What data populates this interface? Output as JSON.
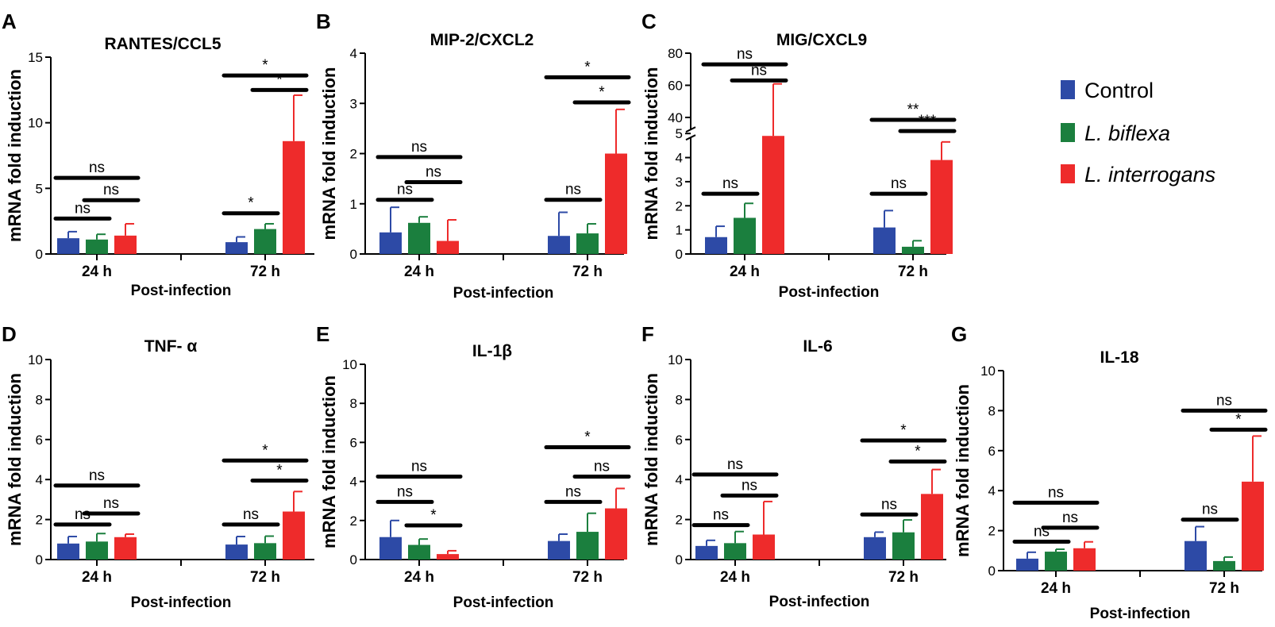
{
  "colors": {
    "control": "#2d4aa6",
    "biflexa": "#1b7f3e",
    "interrogans": "#ee2b2b",
    "axis": "#000000"
  },
  "legend": [
    {
      "label": "Control",
      "color": "#2d4aa6",
      "italic": false
    },
    {
      "label": "L. biflexa",
      "color": "#1b7f3e",
      "italic": true
    },
    {
      "label": "L. interrogans",
      "color": "#ee2b2b",
      "italic": true
    }
  ],
  "chart_data": [
    {
      "panel": "A",
      "type": "bar",
      "title": "RANTES/CCL5",
      "xlabel": "Post-infection",
      "ylabel": "mRNA fold induction",
      "categories": [
        "24 h",
        "72 h"
      ],
      "ylim": [
        0,
        15
      ],
      "yticks": [
        0,
        5,
        10,
        15
      ],
      "series": [
        {
          "name": "Control",
          "values": [
            1.2,
            0.9
          ],
          "errors": [
            0.5,
            0.4
          ]
        },
        {
          "name": "L. biflexa",
          "values": [
            1.1,
            1.9
          ],
          "errors": [
            0.4,
            0.4
          ]
        },
        {
          "name": "L. interrogans",
          "values": [
            1.4,
            8.6
          ],
          "errors": [
            0.9,
            3.5
          ]
        }
      ],
      "annotations": [
        {
          "cat": 0,
          "from": 0,
          "to": 1,
          "y": 2.7,
          "label": "ns"
        },
        {
          "cat": 0,
          "from": 1,
          "to": 2,
          "y": 4.1,
          "label": "ns"
        },
        {
          "cat": 0,
          "from": 0,
          "to": 2,
          "y": 5.8,
          "label": "ns"
        },
        {
          "cat": 1,
          "from": 0,
          "to": 1,
          "y": 3.1,
          "label": "*"
        },
        {
          "cat": 1,
          "from": 1,
          "to": 2,
          "y": 12.5,
          "label": "*"
        },
        {
          "cat": 1,
          "from": 0,
          "to": 2,
          "y": 13.6,
          "label": "*"
        }
      ]
    },
    {
      "panel": "B",
      "type": "bar",
      "title": "MIP-2/CXCL2",
      "xlabel": "Post-infection",
      "ylabel": "mRNA fold induction",
      "categories": [
        "24 h",
        "72 h"
      ],
      "ylim": [
        0,
        4
      ],
      "yticks": [
        0,
        1,
        2,
        3,
        4
      ],
      "series": [
        {
          "name": "Control",
          "values": [
            0.43,
            0.36
          ],
          "errors": [
            0.5,
            0.47
          ]
        },
        {
          "name": "L. biflexa",
          "values": [
            0.62,
            0.41
          ],
          "errors": [
            0.12,
            0.19
          ]
        },
        {
          "name": "L. interrogans",
          "values": [
            0.26,
            2.0
          ],
          "errors": [
            0.42,
            0.88
          ]
        }
      ],
      "annotations": [
        {
          "cat": 0,
          "from": 0,
          "to": 1,
          "y": 1.08,
          "label": "ns"
        },
        {
          "cat": 0,
          "from": 1,
          "to": 2,
          "y": 1.43,
          "label": "ns"
        },
        {
          "cat": 0,
          "from": 0,
          "to": 2,
          "y": 1.93,
          "label": "ns"
        },
        {
          "cat": 1,
          "from": 0,
          "to": 1,
          "y": 1.08,
          "label": "ns"
        },
        {
          "cat": 1,
          "from": 1,
          "to": 2,
          "y": 3.02,
          "label": "*"
        },
        {
          "cat": 1,
          "from": 0,
          "to": 2,
          "y": 3.52,
          "label": "*"
        }
      ]
    },
    {
      "panel": "C",
      "type": "bar",
      "title": "MIG/CXCL9",
      "xlabel": "Post-infection",
      "ylabel": "mRNA fold induction",
      "categories": [
        "24 h",
        "72 h"
      ],
      "broken_axis": {
        "lower": [
          0,
          5
        ],
        "upper": [
          30,
          80
        ],
        "lower_fraction": 0.6
      },
      "yticks": [
        0,
        1,
        2,
        3,
        4,
        5,
        40,
        60,
        80
      ],
      "series": [
        {
          "name": "Control",
          "values": [
            0.7,
            1.1
          ],
          "errors": [
            0.45,
            0.7
          ]
        },
        {
          "name": "L. biflexa",
          "values": [
            1.5,
            0.3
          ],
          "errors": [
            0.6,
            0.25
          ]
        },
        {
          "name": "L. interrogans",
          "values": [
            4.9,
            3.9
          ],
          "errors": [
            56.0,
            0.75
          ]
        }
      ],
      "annotations": [
        {
          "cat": 0,
          "from": 0,
          "to": 1,
          "y": 2.5,
          "label": "ns"
        },
        {
          "cat": 0,
          "from": 1,
          "to": 2,
          "y": 63,
          "label": "ns"
        },
        {
          "cat": 0,
          "from": 0,
          "to": 2,
          "y": 73,
          "label": "ns"
        },
        {
          "cat": 1,
          "from": 0,
          "to": 1,
          "y": 2.5,
          "label": "ns"
        },
        {
          "cat": 1,
          "from": 1,
          "to": 2,
          "y": 31.5,
          "label": "***"
        },
        {
          "cat": 1,
          "from": 0,
          "to": 2,
          "y": 38.5,
          "label": "**"
        }
      ]
    },
    {
      "panel": "D",
      "type": "bar",
      "title": "TNF- α",
      "xlabel": "Post-infection",
      "ylabel": "mRNA fold induction",
      "categories": [
        "24 h",
        "72 h"
      ],
      "ylim": [
        0,
        10
      ],
      "yticks": [
        0,
        2,
        4,
        6,
        8,
        10
      ],
      "series": [
        {
          "name": "Control",
          "values": [
            0.8,
            0.75
          ],
          "errors": [
            0.35,
            0.4
          ]
        },
        {
          "name": "L. biflexa",
          "values": [
            0.9,
            0.82
          ],
          "errors": [
            0.4,
            0.35
          ]
        },
        {
          "name": "L. interrogans",
          "values": [
            1.12,
            2.4
          ],
          "errors": [
            0.15,
            1.0
          ]
        }
      ],
      "annotations": [
        {
          "cat": 0,
          "from": 0,
          "to": 1,
          "y": 1.75,
          "label": "ns"
        },
        {
          "cat": 0,
          "from": 1,
          "to": 2,
          "y": 2.3,
          "label": "ns"
        },
        {
          "cat": 0,
          "from": 0,
          "to": 2,
          "y": 3.7,
          "label": "ns"
        },
        {
          "cat": 1,
          "from": 0,
          "to": 1,
          "y": 1.75,
          "label": "ns"
        },
        {
          "cat": 1,
          "from": 1,
          "to": 2,
          "y": 3.95,
          "label": "*"
        },
        {
          "cat": 1,
          "from": 0,
          "to": 2,
          "y": 4.95,
          "label": "*"
        }
      ]
    },
    {
      "panel": "E",
      "type": "bar",
      "title": "IL-1β",
      "xlabel": "Post-infection",
      "ylabel": "mRNA fold induction",
      "categories": [
        "24 h",
        "72 h"
      ],
      "ylim": [
        0,
        10
      ],
      "yticks": [
        0,
        2,
        4,
        6,
        8,
        10
      ],
      "series": [
        {
          "name": "Control",
          "values": [
            1.15,
            0.95
          ],
          "errors": [
            0.85,
            0.35
          ]
        },
        {
          "name": "L. biflexa",
          "values": [
            0.75,
            1.42
          ],
          "errors": [
            0.3,
            0.95
          ]
        },
        {
          "name": "L. interrogans",
          "values": [
            0.28,
            2.62
          ],
          "errors": [
            0.17,
            1.02
          ]
        }
      ],
      "annotations": [
        {
          "cat": 0,
          "from": 0,
          "to": 1,
          "y": 2.95,
          "label": "ns"
        },
        {
          "cat": 0,
          "from": 1,
          "to": 2,
          "y": 1.75,
          "label": "*"
        },
        {
          "cat": 0,
          "from": 0,
          "to": 2,
          "y": 4.25,
          "label": "ns"
        },
        {
          "cat": 1,
          "from": 0,
          "to": 1,
          "y": 2.95,
          "label": "ns"
        },
        {
          "cat": 1,
          "from": 1,
          "to": 2,
          "y": 4.25,
          "label": "ns"
        },
        {
          "cat": 1,
          "from": 0,
          "to": 2,
          "y": 5.75,
          "label": "*"
        }
      ]
    },
    {
      "panel": "F",
      "type": "bar",
      "title": "IL-6",
      "xlabel": "Post-infection",
      "ylabel": "mRNA fold induction",
      "categories": [
        "24 h",
        "72 h"
      ],
      "ylim": [
        0,
        10
      ],
      "yticks": [
        0,
        2,
        4,
        6,
        8,
        10
      ],
      "series": [
        {
          "name": "Control",
          "values": [
            0.68,
            1.12
          ],
          "errors": [
            0.28,
            0.25
          ]
        },
        {
          "name": "L. biflexa",
          "values": [
            0.82,
            1.36
          ],
          "errors": [
            0.58,
            0.62
          ]
        },
        {
          "name": "L. interrogans",
          "values": [
            1.25,
            3.28
          ],
          "errors": [
            1.65,
            1.22
          ]
        }
      ],
      "annotations": [
        {
          "cat": 0,
          "from": 0,
          "to": 1,
          "y": 1.72,
          "label": "ns"
        },
        {
          "cat": 0,
          "from": 1,
          "to": 2,
          "y": 3.2,
          "label": "ns"
        },
        {
          "cat": 0,
          "from": 0,
          "to": 2,
          "y": 4.25,
          "label": "ns"
        },
        {
          "cat": 1,
          "from": 0,
          "to": 1,
          "y": 2.25,
          "label": "ns"
        },
        {
          "cat": 1,
          "from": 1,
          "to": 2,
          "y": 4.9,
          "label": "*"
        },
        {
          "cat": 1,
          "from": 0,
          "to": 2,
          "y": 5.95,
          "label": "*"
        }
      ]
    },
    {
      "panel": "G",
      "type": "bar",
      "title": "IL-18",
      "xlabel": "Post-infection",
      "ylabel": "mRNA fold induction",
      "categories": [
        "24 h",
        "72 h"
      ],
      "ylim": [
        0,
        10
      ],
      "yticks": [
        0,
        2,
        4,
        6,
        8,
        10
      ],
      "series": [
        {
          "name": "Control",
          "values": [
            0.6,
            1.48
          ],
          "errors": [
            0.32,
            0.72
          ]
        },
        {
          "name": "L. biflexa",
          "values": [
            0.95,
            0.48
          ],
          "errors": [
            0.12,
            0.2
          ]
        },
        {
          "name": "L. interrogans",
          "values": [
            1.12,
            4.45
          ],
          "errors": [
            0.32,
            2.28
          ]
        }
      ],
      "annotations": [
        {
          "cat": 0,
          "from": 0,
          "to": 1,
          "y": 1.45,
          "label": "ns"
        },
        {
          "cat": 0,
          "from": 1,
          "to": 2,
          "y": 2.15,
          "label": "ns"
        },
        {
          "cat": 0,
          "from": 0,
          "to": 2,
          "y": 3.4,
          "label": "ns"
        },
        {
          "cat": 1,
          "from": 0,
          "to": 1,
          "y": 2.55,
          "label": "ns"
        },
        {
          "cat": 1,
          "from": 1,
          "to": 2,
          "y": 7.05,
          "label": "*"
        },
        {
          "cat": 1,
          "from": 0,
          "to": 2,
          "y": 8.0,
          "label": "ns"
        }
      ]
    }
  ]
}
